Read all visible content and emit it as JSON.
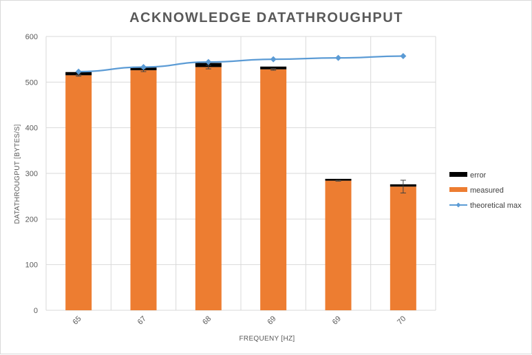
{
  "chart_data": {
    "type": "bar",
    "title": "ACKNOWLEDGE DATATHROUGHPUT",
    "xlabel": "FREQUENY [HZ]",
    "ylabel": "DATATHROUGPUT [BYTES/S]",
    "categories": [
      "65",
      "67",
      "68",
      "69",
      "69",
      "70"
    ],
    "ylim": [
      0,
      600
    ],
    "yticks": [
      0,
      100,
      200,
      300,
      400,
      500,
      600
    ],
    "grid": true,
    "legend_position": "right",
    "stacked": true,
    "series": [
      {
        "name": "measured",
        "kind": "bar",
        "color": "#ED7D31",
        "values": [
          515,
          526,
          533,
          528,
          284,
          271
        ],
        "error_bars": [
          2,
          3,
          4,
          2,
          1,
          14
        ]
      },
      {
        "name": "error",
        "kind": "bar",
        "color": "#000000",
        "values": [
          7,
          6,
          9,
          6,
          4,
          5
        ]
      },
      {
        "name": "theoretical max",
        "kind": "line",
        "color": "#5B9BD5",
        "marker": "diamond",
        "values": [
          523,
          533,
          544,
          550,
          553,
          557
        ]
      }
    ],
    "legend_order": [
      "error",
      "measured",
      "theoretical max"
    ]
  }
}
